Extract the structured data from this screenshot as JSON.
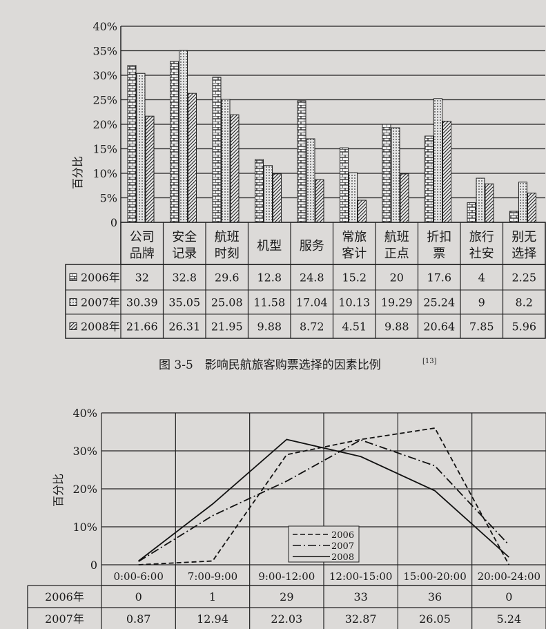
{
  "chart_data": [
    {
      "type": "bar",
      "title": "图 3-5　影响民航旅客购票选择的因素比例",
      "title_ref": "[13]",
      "ylabel": "百分比",
      "ylim": [
        0,
        40
      ],
      "yticks": [
        "0",
        "5%",
        "10%",
        "15%",
        "20%",
        "25%",
        "30%",
        "35%",
        "40%"
      ],
      "grid": "horizontal",
      "categories": [
        [
          "公司",
          "品牌"
        ],
        [
          "安全",
          "记录"
        ],
        [
          "航班",
          "时刻"
        ],
        [
          "机型",
          ""
        ],
        [
          "服务",
          ""
        ],
        [
          "常旅",
          "客计"
        ],
        [
          "航班",
          "正点"
        ],
        [
          "折扣",
          "票"
        ],
        [
          "旅行",
          "社安"
        ],
        [
          "别无",
          "选择"
        ]
      ],
      "series": [
        {
          "name": "2006年",
          "pattern": "brick",
          "values": [
            "32",
            "32.8",
            "29.6",
            "12.8",
            "24.8",
            "15.2",
            "20",
            "17.6",
            "4",
            "2.25"
          ]
        },
        {
          "name": "2007年",
          "pattern": "dots",
          "values": [
            "30.39",
            "35.05",
            "25.08",
            "11.58",
            "17.04",
            "10.13",
            "19.29",
            "25.24",
            "9",
            "8.2"
          ]
        },
        {
          "name": "2008年",
          "pattern": "hatch",
          "values": [
            "21.66",
            "26.31",
            "21.95",
            "9.88",
            "8.72",
            "4.51",
            "9.88",
            "20.64",
            "7.85",
            "5.96"
          ]
        }
      ]
    },
    {
      "type": "line",
      "ylabel": "百分比",
      "ylim": [
        0,
        40
      ],
      "yticks": [
        "0",
        "10%",
        "20%",
        "30%",
        "40%"
      ],
      "grid": "both",
      "legend_placement": "bottom-center",
      "categories": [
        "0:00-6:00",
        "7:00-9:00",
        "9:00-12:00",
        "12:00-15:00",
        "15:00-20:00",
        "20:00-24:00"
      ],
      "series": [
        {
          "name": "2006",
          "table_label": "2006年",
          "style": "dashed",
          "values": [
            "0",
            "1",
            "29",
            "33",
            "36",
            "0"
          ]
        },
        {
          "name": "2007",
          "table_label": "2007年",
          "style": "dashdot",
          "values": [
            "0.87",
            "12.94",
            "22.03",
            "32.87",
            "26.05",
            "5.24"
          ]
        },
        {
          "name": "2008",
          "style": "solid",
          "values": [
            1,
            16,
            33,
            28.5,
            19.5,
            2
          ]
        }
      ]
    }
  ]
}
